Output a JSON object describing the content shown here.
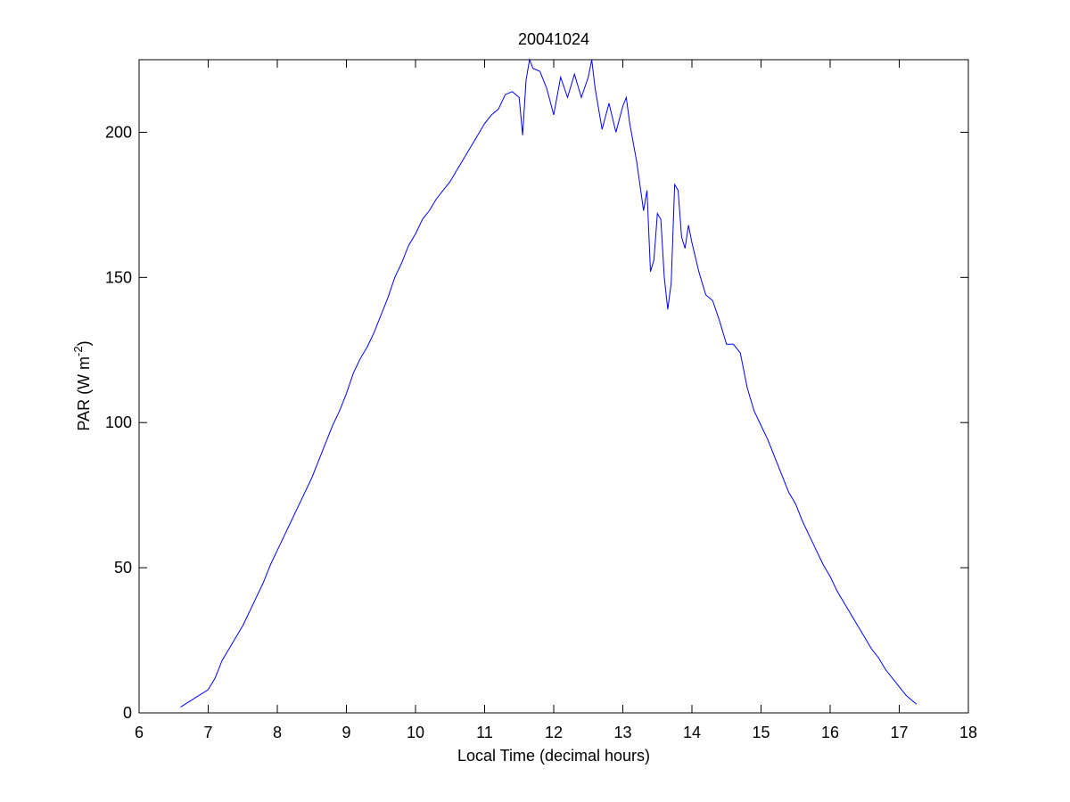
{
  "chart_data": {
    "type": "line",
    "title": "20041024",
    "x_label": "Local Time (decimal hours)",
    "y_label": {
      "text": "PAR (W m",
      "superscript": "-2",
      "suffix": ")"
    },
    "xlim": [
      6,
      18
    ],
    "xticks": [
      6,
      7,
      8,
      9,
      10,
      11,
      12,
      13,
      14,
      15,
      16,
      17,
      18
    ],
    "ylim": [
      0,
      225
    ],
    "yticks": [
      0,
      50,
      100,
      150,
      200
    ],
    "grid": false,
    "series": [
      {
        "color": "#0000ff",
        "x": [
          6.6,
          6.8,
          7.0,
          7.1,
          7.2,
          7.3,
          7.4,
          7.5,
          7.6,
          7.7,
          7.8,
          7.9,
          8.0,
          8.1,
          8.2,
          8.3,
          8.4,
          8.5,
          8.6,
          8.7,
          8.8,
          8.9,
          9.0,
          9.1,
          9.2,
          9.3,
          9.4,
          9.5,
          9.6,
          9.7,
          9.8,
          9.9,
          10.0,
          10.1,
          10.2,
          10.3,
          10.4,
          10.5,
          10.6,
          10.7,
          10.8,
          10.9,
          11.0,
          11.1,
          11.2,
          11.3,
          11.4,
          11.5,
          11.55,
          11.6,
          11.65,
          11.7,
          11.8,
          11.9,
          12.0,
          12.1,
          12.2,
          12.3,
          12.4,
          12.5,
          12.55,
          12.6,
          12.7,
          12.8,
          12.9,
          13.0,
          13.05,
          13.1,
          13.2,
          13.3,
          13.35,
          13.4,
          13.45,
          13.5,
          13.55,
          13.6,
          13.65,
          13.7,
          13.75,
          13.8,
          13.85,
          13.9,
          13.95,
          14.0,
          14.1,
          14.2,
          14.3,
          14.4,
          14.5,
          14.6,
          14.7,
          14.8,
          14.9,
          15.0,
          15.1,
          15.2,
          15.3,
          15.4,
          15.5,
          15.6,
          15.7,
          15.8,
          15.9,
          16.0,
          16.1,
          16.2,
          16.3,
          16.4,
          16.5,
          16.6,
          16.7,
          16.8,
          16.9,
          17.0,
          17.1,
          17.2,
          17.25
        ],
        "values": [
          2,
          5,
          8,
          12,
          18,
          22,
          26,
          30,
          35,
          40,
          45,
          51,
          56,
          61,
          66,
          71,
          76,
          81,
          87,
          93,
          99,
          104,
          110,
          117,
          122,
          126,
          131,
          137,
          143,
          150,
          155,
          161,
          165,
          170,
          173,
          177,
          180,
          183,
          187,
          191,
          195,
          199,
          203,
          206,
          208,
          213,
          214,
          212,
          199,
          218,
          225,
          222,
          221,
          215,
          206,
          219,
          212,
          220,
          212,
          219,
          225,
          215,
          201,
          210,
          200,
          209,
          212,
          203,
          190,
          173,
          180,
          152,
          156,
          172,
          170,
          150,
          139,
          148,
          182,
          180,
          164,
          160,
          168,
          162,
          152,
          144,
          142,
          135,
          127,
          127,
          124,
          112,
          104,
          99,
          94,
          88,
          82,
          76,
          72,
          66,
          61,
          56,
          51,
          47,
          42,
          38,
          34,
          30,
          26,
          22,
          19,
          15,
          12,
          9,
          6,
          4,
          3
        ]
      }
    ]
  }
}
